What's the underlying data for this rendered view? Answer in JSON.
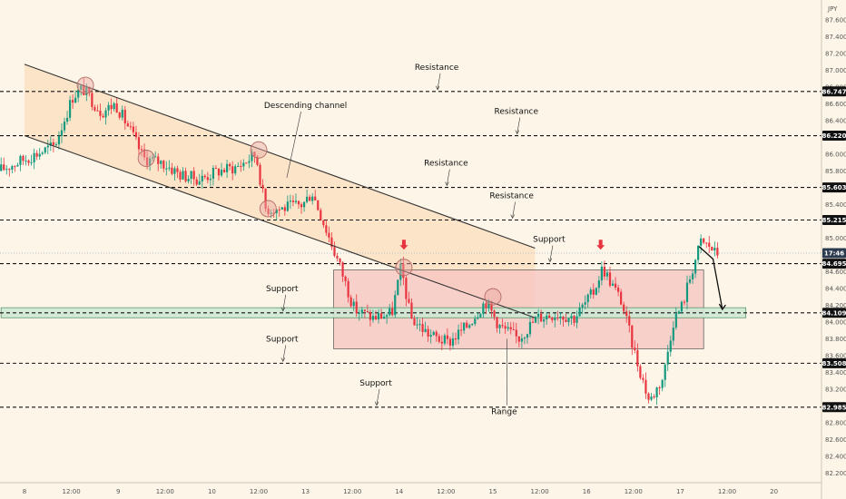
{
  "chart_data": {
    "type": "candlestick",
    "currency_label": "JPY",
    "y_ticks": [
      87.6,
      87.4,
      87.2,
      87.0,
      86.8,
      86.6,
      86.4,
      86.2,
      86.0,
      85.8,
      85.6,
      85.4,
      85.2,
      85.0,
      84.8,
      84.6,
      84.4,
      84.2,
      84.0,
      83.8,
      83.6,
      83.4,
      83.2,
      83.0,
      82.8,
      82.6,
      82.4,
      82.2
    ],
    "y_tick_labels": [
      "87.600",
      "87.400",
      "87.200",
      "87.000",
      "86.800",
      "86.600",
      "86.400",
      "86.200",
      "86.000",
      "85.800",
      "85.600",
      "85.400",
      "85.200",
      "85.000",
      "84.800",
      "84.600",
      "84.400",
      "84.200",
      "84.000",
      "83.800",
      "83.600",
      "83.400",
      "83.200",
      "83.000",
      "82.800",
      "82.600",
      "82.400",
      "82.200"
    ],
    "ylim": [
      82.15,
      87.75
    ],
    "x_ticks": [
      {
        "label": "8",
        "t": 0.0
      },
      {
        "label": "12:00",
        "t": 0.5
      },
      {
        "label": "9",
        "t": 1.0
      },
      {
        "label": "12:00",
        "t": 1.5
      },
      {
        "label": "10",
        "t": 2.0
      },
      {
        "label": "12:00",
        "t": 2.5
      },
      {
        "label": "13",
        "t": 3.0
      },
      {
        "label": "12:00",
        "t": 3.5
      },
      {
        "label": "14",
        "t": 4.0
      },
      {
        "label": "12:00",
        "t": 4.5
      },
      {
        "label": "15",
        "t": 5.0
      },
      {
        "label": "12:00",
        "t": 5.5
      },
      {
        "label": "16",
        "t": 6.0
      },
      {
        "label": "12:00",
        "t": 6.5
      },
      {
        "label": "17",
        "t": 7.0
      },
      {
        "label": "12:00",
        "t": 7.5
      },
      {
        "label": "20",
        "t": 8.0
      }
    ],
    "xlim": [
      -0.25,
      8.5
    ],
    "price_levels": [
      {
        "value": 86.747,
        "label": "86.747",
        "annotation": "Resistance",
        "ann_t": 4.4
      },
      {
        "value": 86.22,
        "label": "86.220",
        "annotation": "Resistance",
        "ann_t": 5.25
      },
      {
        "value": 85.603,
        "label": "85.603",
        "annotation": "Resistance",
        "ann_t": 4.5
      },
      {
        "value": 85.215,
        "label": "85.215",
        "annotation": "Resistance",
        "ann_t": 5.2
      },
      {
        "value": 84.695,
        "label": "84.695",
        "annotation": "Support",
        "ann_t": 5.6
      },
      {
        "value": 84.109,
        "label": "84.109",
        "annotation": "Support",
        "ann_t": 2.75
      },
      {
        "value": 83.508,
        "label": "83.508",
        "annotation": "Support",
        "ann_t": 2.75
      },
      {
        "value": 82.985,
        "label": "82.985",
        "annotation": "Support",
        "ann_t": 3.75
      }
    ],
    "current_price": {
      "label": "17:46",
      "value": 84.82
    },
    "annotations": {
      "channel": "Descending channel",
      "range": "Range"
    },
    "channel": {
      "upper": [
        {
          "t": 0.0,
          "p": 87.07
        },
        {
          "t": 5.45,
          "p": 84.88
        }
      ],
      "lower": [
        {
          "t": 0.0,
          "p": 86.22
        },
        {
          "t": 5.45,
          "p": 84.05
        }
      ]
    },
    "range_box": {
      "t0": 3.3,
      "t1": 7.25,
      "top": 84.62,
      "bottom": 83.68
    },
    "support_zone": {
      "t0": -0.25,
      "t1": 7.7,
      "top": 84.17,
      "bottom": 84.05
    },
    "projection": [
      {
        "t": 7.2,
        "p": 84.9
      },
      {
        "t": 7.35,
        "p": 84.75
      },
      {
        "t": 7.45,
        "p": 84.15
      }
    ],
    "red_arrows": [
      {
        "t": 4.05,
        "p": 84.72
      },
      {
        "t": 6.15,
        "p": 84.72
      }
    ],
    "circles": [
      {
        "t": 0.65,
        "p": 86.82
      },
      {
        "t": 1.3,
        "p": 85.95
      },
      {
        "t": 2.5,
        "p": 86.05
      },
      {
        "t": 2.6,
        "p": 85.35
      },
      {
        "t": 4.05,
        "p": 84.65
      },
      {
        "t": 5.0,
        "p": 84.3
      }
    ],
    "colors": {
      "up": "#14997f",
      "down": "#e8343e",
      "level": "#111111",
      "channel_fill": "#fbe1c2",
      "range_fill": "#f7c4c0",
      "zone_fill": "#cfe9d6",
      "zone_stroke": "#4c8c61",
      "circle_fill": "#e8a9a4",
      "arrow": "#e8343e"
    }
  }
}
